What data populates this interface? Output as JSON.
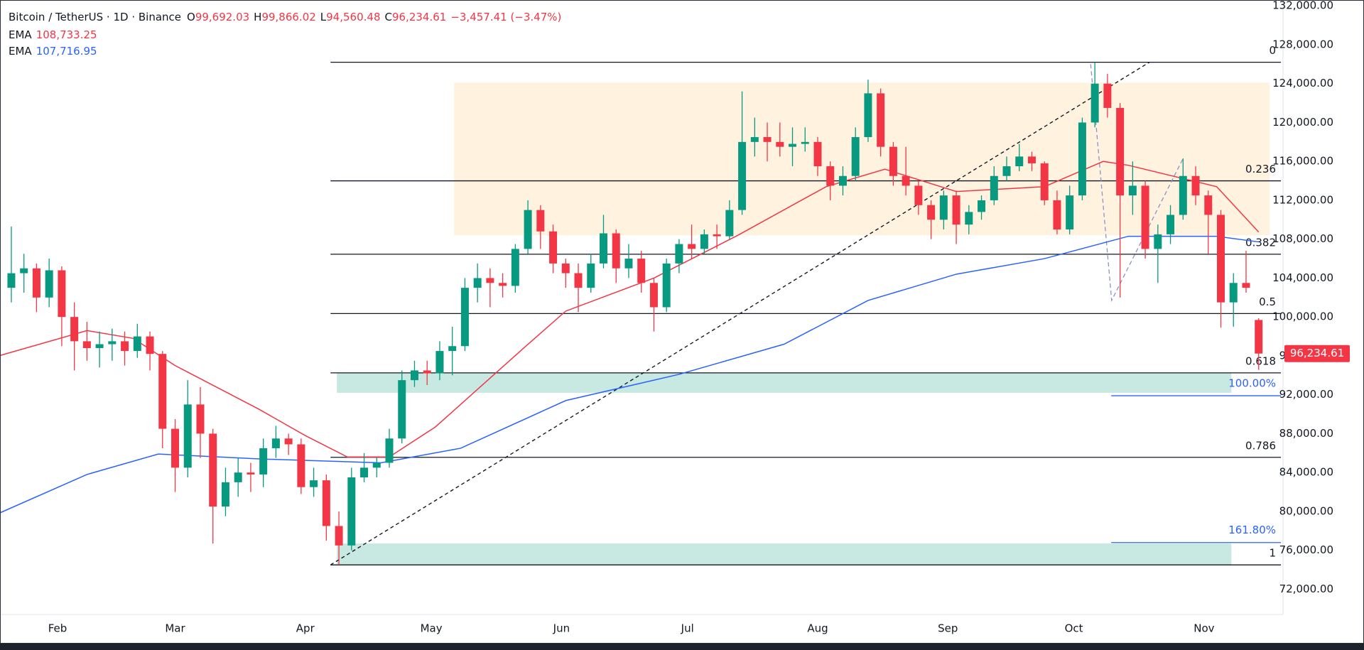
{
  "chart_data": {
    "type": "candlestick",
    "header": {
      "symbol": "Bitcoin / TetherUS · 1D · Binance",
      "ohlc": [
        {
          "key": "O",
          "text": "99,692.03"
        },
        {
          "key": "H",
          "text": "99,866.02"
        },
        {
          "key": "L",
          "text": "94,560.48"
        },
        {
          "key": "C",
          "text": "96,234.61"
        }
      ],
      "change": "−3,457.41 (−3.47%)"
    },
    "up_color": "#089981",
    "down_color": "#f23645",
    "grid": false,
    "xlim": [
      18.3,
      323.8
    ],
    "ylim": [
      69400,
      132600
    ],
    "xticks": [
      {
        "value": 32,
        "label": "Feb"
      },
      {
        "value": 60,
        "label": "Mar"
      },
      {
        "value": 91,
        "label": "Apr"
      },
      {
        "value": 121,
        "label": "May"
      },
      {
        "value": 152,
        "label": "Jun"
      },
      {
        "value": 182,
        "label": "Jul"
      },
      {
        "value": 213,
        "label": "Aug"
      },
      {
        "value": 244,
        "label": "Sep"
      },
      {
        "value": 274,
        "label": "Oct"
      },
      {
        "value": 305,
        "label": "Nov"
      }
    ],
    "yticks": [
      {
        "value": 72000,
        "label": "72,000.00"
      },
      {
        "value": 76000,
        "label": "76,000.00"
      },
      {
        "value": 80000,
        "label": "80,000.00"
      },
      {
        "value": 84000,
        "label": "84,000.00"
      },
      {
        "value": 88000,
        "label": "88,000.00"
      },
      {
        "value": 92000,
        "label": "92,000.00"
      },
      {
        "value": 96000,
        "label": "96,000.00"
      },
      {
        "value": 100000,
        "label": "100,000.00"
      },
      {
        "value": 104000,
        "label": "104,000.00"
      },
      {
        "value": 108000,
        "label": "108,000.00"
      },
      {
        "value": 112000,
        "label": "112,000.00"
      },
      {
        "value": 116000,
        "label": "116,000.00"
      },
      {
        "value": 120000,
        "label": "120,000.00"
      },
      {
        "value": 124000,
        "label": "124,000.00"
      },
      {
        "value": 128000,
        "label": "128,000.00"
      },
      {
        "value": 132000,
        "label": "132,000.00"
      }
    ],
    "candles": {
      "x": [
        21,
        24,
        27,
        30,
        33,
        36,
        39,
        42,
        45,
        48,
        51,
        54,
        57,
        60,
        63,
        66,
        69,
        72,
        75,
        78,
        81,
        84,
        87,
        90,
        93,
        96,
        99,
        102,
        105,
        108,
        111,
        114,
        117,
        120,
        123,
        126,
        129,
        132,
        135,
        138,
        141,
        144,
        147,
        150,
        153,
        156,
        159,
        162,
        165,
        168,
        171,
        174,
        177,
        180,
        183,
        186,
        189,
        192,
        195,
        198,
        201,
        204,
        207,
        210,
        213,
        216,
        219,
        222,
        225,
        228,
        231,
        234,
        237,
        240,
        243,
        246,
        249,
        252,
        255,
        258,
        261,
        264,
        267,
        270,
        273,
        276,
        279,
        282,
        285,
        288,
        291,
        294,
        297,
        300,
        303,
        306,
        309,
        312,
        315,
        318
      ],
      "open": [
        103000,
        104500,
        105000,
        102000,
        104800,
        100000,
        97500,
        96800,
        97200,
        97500,
        96500,
        98000,
        96200,
        88500,
        84500,
        91000,
        88000,
        80500,
        83000,
        84000,
        83800,
        86500,
        87500,
        86900,
        82500,
        83200,
        78500,
        76500,
        83500,
        84500,
        85000,
        87500,
        93500,
        94500,
        94200,
        96500,
        97000,
        103000,
        104000,
        103500,
        103200,
        107000,
        111000,
        108800,
        105500,
        104500,
        103000,
        105500,
        108600,
        105000,
        106000,
        103500,
        101000,
        105500,
        107500,
        107000,
        108500,
        108300,
        111000,
        118000,
        118500,
        118000,
        117500,
        117800,
        118000,
        115500,
        113500,
        114500,
        118500,
        123000,
        117500,
        114500,
        113500,
        111500,
        110000,
        112500,
        109500,
        110800,
        112000,
        114500,
        115500,
        116500,
        115800,
        112000,
        109000,
        112500,
        120000,
        124000,
        121500,
        112500,
        113500,
        107000,
        108500,
        110500,
        114500,
        112500,
        110500,
        101500,
        103500,
        99692.03
      ],
      "high": [
        109300,
        106500,
        105500,
        106000,
        105200,
        101500,
        99500,
        98500,
        98800,
        98500,
        99300,
        98500,
        96500,
        89500,
        93500,
        92800,
        88500,
        84500,
        85500,
        85000,
        87500,
        88800,
        88000,
        87500,
        84500,
        83800,
        80000,
        84500,
        86000,
        85500,
        88500,
        94500,
        95500,
        95500,
        97500,
        99000,
        104000,
        105500,
        105000,
        104500,
        107500,
        112000,
        111500,
        109500,
        106000,
        105500,
        106500,
        110500,
        109000,
        107500,
        106800,
        104000,
        106000,
        108000,
        109500,
        109000,
        109500,
        112000,
        123200,
        120500,
        120000,
        120000,
        119500,
        119500,
        118500,
        116000,
        115500,
        119500,
        124400,
        123500,
        118000,
        117500,
        114000,
        112000,
        113000,
        113000,
        111500,
        112500,
        115500,
        116500,
        117800,
        117000,
        116000,
        113000,
        113500,
        120500,
        126200,
        125000,
        122000,
        116000,
        114000,
        109500,
        111500,
        116300,
        115500,
        113000,
        111000,
        104500,
        106800,
        99866.02
      ],
      "low": [
        101500,
        102500,
        100500,
        101000,
        97000,
        94500,
        95500,
        94800,
        95500,
        95000,
        95800,
        94500,
        86500,
        82000,
        83500,
        85500,
        76700,
        79500,
        81500,
        82000,
        82500,
        85500,
        85800,
        81800,
        81500,
        77000,
        74500,
        76000,
        83000,
        83500,
        84500,
        87000,
        92800,
        93000,
        93500,
        94000,
        96500,
        101500,
        101000,
        102000,
        102500,
        106500,
        107000,
        104500,
        103000,
        100500,
        102500,
        105000,
        103500,
        104000,
        102500,
        98500,
        100500,
        104500,
        106000,
        106500,
        107000,
        108000,
        110500,
        116500,
        116000,
        116500,
        115500,
        117000,
        114500,
        112000,
        112500,
        114000,
        118000,
        116500,
        113500,
        112500,
        110500,
        108000,
        109000,
        107500,
        108500,
        110000,
        111500,
        114000,
        115000,
        115000,
        111500,
        108500,
        108500,
        112000,
        119500,
        120500,
        102000,
        110500,
        106000,
        103500,
        107500,
        110000,
        111500,
        106500,
        98900,
        99000,
        102500,
        94560.48
      ],
      "close": [
        104500,
        105000,
        102000,
        104800,
        100000,
        97500,
        96800,
        97200,
        97500,
        96500,
        98000,
        96200,
        88500,
        84500,
        91000,
        88000,
        80500,
        83000,
        84000,
        83800,
        86500,
        87500,
        86900,
        82500,
        83200,
        78500,
        76500,
        83500,
        84500,
        85000,
        87500,
        93500,
        94500,
        94200,
        96500,
        97000,
        103000,
        104000,
        103500,
        103200,
        107000,
        111000,
        108800,
        105500,
        104500,
        103000,
        105500,
        108600,
        105000,
        106000,
        103500,
        101000,
        105500,
        107500,
        107000,
        108500,
        108300,
        111000,
        118000,
        118500,
        118000,
        117500,
        117800,
        118000,
        115500,
        113500,
        114500,
        118500,
        123000,
        117500,
        114500,
        113500,
        111500,
        110000,
        112500,
        109500,
        110800,
        112000,
        114500,
        115500,
        116500,
        115800,
        112000,
        109000,
        112500,
        120000,
        124000,
        121500,
        112500,
        113500,
        107000,
        108500,
        110500,
        114500,
        112500,
        110500,
        101500,
        103500,
        103000,
        96234.61
      ]
    },
    "last_price_label": "96,234.61",
    "series": [
      {
        "name": "EMA",
        "color": "#f23645",
        "last_value_label": "108,733.25",
        "x": [
          18,
          39,
          50,
          60,
          80,
          91,
          101,
          111,
          122,
          143,
          153,
          174,
          194,
          215,
          229,
          246,
          267,
          281,
          287,
          308,
          318
        ],
        "values": [
          96000,
          98600,
          97800,
          95000,
          90500,
          87800,
          85600,
          85600,
          88700,
          96800,
          100600,
          104000,
          108400,
          113400,
          115200,
          112900,
          113400,
          116000,
          115600,
          113400,
          108733.25
        ]
      },
      {
        "name": "EMA",
        "color": "#2962ff",
        "last_value_label": "107,716.95",
        "x": [
          18,
          39,
          56,
          80,
          109,
          128,
          153,
          180,
          205,
          225,
          246,
          267,
          287,
          308,
          318
        ],
        "values": [
          79800,
          83800,
          85900,
          85400,
          85000,
          86500,
          91400,
          94100,
          97200,
          101700,
          104400,
          106000,
          108300,
          108300,
          107716.95
        ]
      }
    ],
    "fibonacci": {
      "x": [
        97,
        323.3
      ],
      "levels": [
        {
          "ratio": 0,
          "price": 126200
        },
        {
          "ratio": 0.236,
          "price": 114000
        },
        {
          "ratio": 0.382,
          "price": 106450
        },
        {
          "ratio": 0.5,
          "price": 100350
        },
        {
          "ratio": 0.618,
          "price": 94250
        },
        {
          "ratio": 0.786,
          "price": 85565
        },
        {
          "ratio": 1,
          "price": 74500
        }
      ]
    },
    "range_box": {
      "x": [
        126.4,
        320.6
      ],
      "y": [
        108400,
        124100
      ],
      "color": "#fff3e0"
    },
    "zones": [
      {
        "x": [
          98.5,
          311.5
        ],
        "y": [
          92200,
          94250
        ],
        "color": "#c8e9e2"
      },
      {
        "x": [
          98.5,
          311.5
        ],
        "y": [
          74500,
          76700
        ],
        "color": "#c8e9e2"
      }
    ],
    "extensions": [
      {
        "label": "100.00%",
        "price": 91900,
        "x": [
          282.9,
          323.3
        ]
      },
      {
        "label": "161.80%",
        "price": 76800,
        "x": [
          282.9,
          323.3
        ]
      }
    ],
    "trendline": {
      "x": [
        97,
        292
      ],
      "y": [
        74500,
        126200
      ]
    },
    "zigzag": {
      "x": [
        278,
        283,
        300
      ],
      "y": [
        126000,
        101700,
        116300
      ]
    }
  }
}
